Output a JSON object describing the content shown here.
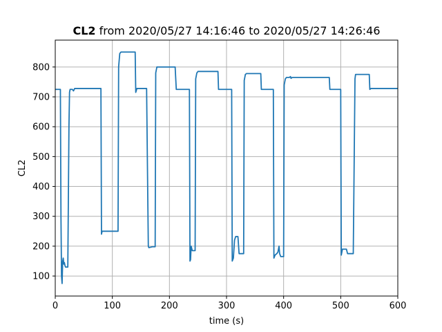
{
  "chart_data": {
    "type": "line",
    "title": {
      "bold": "CL2",
      "rest": " from 2020/05/27 14:16:46 to 2020/05/27 14:26:46"
    },
    "xlabel": "time (s)",
    "ylabel": "CL2",
    "xlim": [
      0,
      600
    ],
    "ylim": [
      33,
      890
    ],
    "xticks": [
      0,
      100,
      200,
      300,
      400,
      500,
      600
    ],
    "yticks": [
      100,
      200,
      300,
      400,
      500,
      600,
      700,
      800
    ],
    "grid": true,
    "line_color": "#1f77b4",
    "series": [
      {
        "x": [
          0,
          9,
          10,
          11,
          12,
          13,
          14,
          15,
          16,
          17,
          18,
          20,
          22,
          24,
          25,
          26,
          30,
          32,
          34,
          80,
          81,
          82,
          85,
          100,
          110,
          111,
          113,
          115,
          140,
          141,
          143,
          160,
          163,
          164,
          170,
          175,
          176,
          178,
          210,
          212,
          214,
          235,
          236,
          237,
          238,
          240,
          245,
          246,
          248,
          250,
          252,
          285,
          286,
          288,
          309,
          310,
          312,
          314,
          316,
          318,
          320,
          322,
          325,
          327,
          330,
          331,
          333,
          335,
          360,
          361,
          363,
          382,
          383,
          385,
          388,
          390,
          392,
          393,
          395,
          400,
          401,
          403,
          405,
          410,
          412,
          413,
          415,
          480,
          481,
          483,
          500,
          501,
          502,
          503,
          505,
          510,
          512,
          520,
          522,
          525,
          526,
          528,
          550,
          551,
          553,
          600
        ],
        "y": [
          725,
          725,
          300,
          100,
          75,
          150,
          160,
          140,
          145,
          135,
          130,
          130,
          130,
          600,
          715,
          725,
          725,
          720,
          728,
          728,
          240,
          250,
          250,
          250,
          250,
          800,
          845,
          850,
          850,
          715,
          728,
          728,
          200,
          195,
          198,
          198,
          780,
          800,
          800,
          725,
          725,
          725,
          150,
          155,
          200,
          185,
          185,
          760,
          780,
          785,
          785,
          785,
          725,
          725,
          725,
          150,
          160,
          220,
          232,
          232,
          232,
          175,
          175,
          175,
          175,
          755,
          775,
          778,
          778,
          725,
          725,
          725,
          160,
          170,
          175,
          180,
          200,
          175,
          165,
          165,
          740,
          760,
          765,
          765,
          768,
          762,
          765,
          765,
          725,
          725,
          725,
          170,
          180,
          190,
          190,
          190,
          175,
          175,
          175,
          760,
          775,
          775,
          775,
          725,
          728,
          728
        ]
      }
    ]
  }
}
